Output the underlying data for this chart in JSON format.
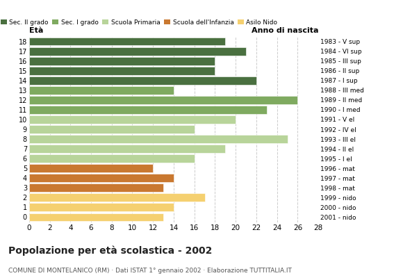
{
  "ages": [
    18,
    17,
    16,
    15,
    14,
    13,
    12,
    11,
    10,
    9,
    8,
    7,
    6,
    5,
    4,
    3,
    2,
    1,
    0
  ],
  "values": [
    19,
    21,
    18,
    18,
    22,
    14,
    26,
    23,
    20,
    16,
    25,
    19,
    16,
    12,
    14,
    13,
    17,
    14,
    13
  ],
  "right_labels": [
    "1983 - V sup",
    "1984 - VI sup",
    "1985 - III sup",
    "1986 - II sup",
    "1987 - I sup",
    "1988 - III med",
    "1989 - II med",
    "1990 - I med",
    "1991 - V el",
    "1992 - IV el",
    "1993 - III el",
    "1994 - II el",
    "1995 - I el",
    "1996 - mat",
    "1997 - mat",
    "1998 - mat",
    "1999 - nido",
    "2000 - nido",
    "2001 - nido"
  ],
  "bar_colors": [
    "#4a7040",
    "#4a7040",
    "#4a7040",
    "#4a7040",
    "#4a7040",
    "#7faa60",
    "#7faa60",
    "#7faa60",
    "#b8d49a",
    "#b8d49a",
    "#b8d49a",
    "#b8d49a",
    "#b8d49a",
    "#c97830",
    "#c97830",
    "#c97830",
    "#f5d070",
    "#f5d070",
    "#f5d070"
  ],
  "legend_labels": [
    "Sec. II grado",
    "Sec. I grado",
    "Scuola Primaria",
    "Scuola dell'Infanzia",
    "Asilo Nido"
  ],
  "legend_colors": [
    "#4a7040",
    "#7faa60",
    "#b8d49a",
    "#c97830",
    "#f5d070"
  ],
  "title": "Popolazione per età scolastica - 2002",
  "subtitle": "COMUNE DI MONTELANICO (RM) · Dati ISTAT 1° gennaio 2002 · Elaborazione TUTTITALIA.IT",
  "ylabel_eta": "Età",
  "ylabel_anno": "Anno di nascita",
  "xlabel_vals": [
    0,
    2,
    4,
    6,
    8,
    10,
    12,
    14,
    16,
    18,
    20,
    22,
    24,
    26,
    28
  ],
  "xlim": [
    0,
    28
  ],
  "background_color": "#ffffff",
  "grid_color": "#cccccc"
}
